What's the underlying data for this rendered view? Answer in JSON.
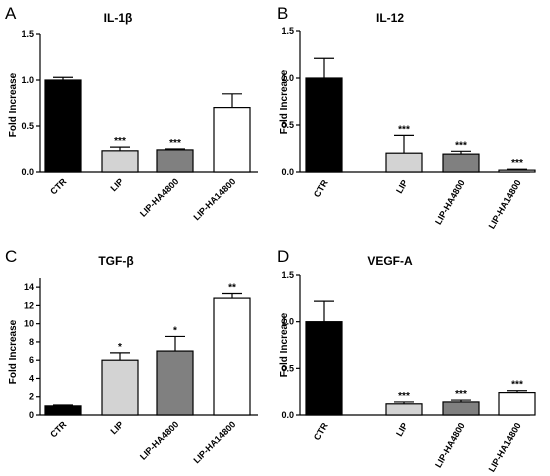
{
  "chart_data": [
    {
      "type": "bar",
      "panel": "A",
      "title": "IL-1β",
      "ylabel": "Fold Increase",
      "ylim": [
        0,
        1.5
      ],
      "yticks": [
        "0.0",
        "0.5",
        "1.0",
        "1.5"
      ],
      "yticks_values": [
        0,
        0.5,
        1.0,
        1.5
      ],
      "categories": [
        "CTR",
        "LIP",
        "LIP-HA4800",
        "LIP-HA14800"
      ],
      "values": [
        1.0,
        0.23,
        0.24,
        0.7
      ],
      "errors": [
        0.03,
        0.04,
        0.01,
        0.15
      ],
      "significance": [
        "",
        "***",
        "***",
        ""
      ],
      "colors": [
        "#000000",
        "#d3d3d3",
        "#808080",
        "#ffffff"
      ],
      "label_rotation": "diagonal"
    },
    {
      "type": "bar",
      "panel": "B",
      "title": "IL-12",
      "ylabel": "Fold Increase",
      "ylim": [
        0,
        1.5
      ],
      "yticks": [
        "0.0",
        "0.5",
        "1.0",
        "1.5"
      ],
      "yticks_values": [
        0,
        0.5,
        1.0,
        1.5
      ],
      "categories": [
        "CTR",
        "LIP",
        "LIP-HA4800",
        "LIP-HA14800"
      ],
      "values": [
        1.0,
        0.2,
        0.19,
        0.02
      ],
      "errors": [
        0.21,
        0.19,
        0.03,
        0.01
      ],
      "significance": [
        "",
        "***",
        "***",
        "***"
      ],
      "colors": [
        "#000000",
        "#d3d3d3",
        "#808080",
        "#ffffff"
      ],
      "label_rotation": "steep"
    },
    {
      "type": "bar",
      "panel": "C",
      "title": "TGF-β",
      "ylabel": "Fold Increase",
      "ylim": [
        0,
        15
      ],
      "yticks": [
        "0",
        "2",
        "4",
        "6",
        "8",
        "10",
        "12",
        "14"
      ],
      "yticks_values": [
        0,
        2,
        4,
        6,
        8,
        10,
        12,
        14
      ],
      "categories": [
        "CTR",
        "LIP",
        "LIP-HA4800",
        "LIP-HA14800"
      ],
      "values": [
        1.0,
        6.0,
        7.0,
        12.8
      ],
      "errors": [
        0.1,
        0.8,
        1.6,
        0.5
      ],
      "significance": [
        "",
        "*",
        "*",
        "**"
      ],
      "colors": [
        "#000000",
        "#d3d3d3",
        "#808080",
        "#ffffff"
      ],
      "label_rotation": "diagonal"
    },
    {
      "type": "bar",
      "panel": "D",
      "title": "VEGF-A",
      "ylabel": "Fold Increase",
      "ylim": [
        0,
        1.5
      ],
      "yticks": [
        "0.0",
        "0.5",
        "1.0",
        "1.5"
      ],
      "yticks_values": [
        0,
        0.5,
        1.0,
        1.5
      ],
      "categories": [
        "CTR",
        "LIP",
        "LIP-HA4800",
        "LIP-HA14800"
      ],
      "values": [
        1.0,
        0.12,
        0.14,
        0.24
      ],
      "errors": [
        0.22,
        0.02,
        0.02,
        0.02
      ],
      "significance": [
        "",
        "***",
        "***",
        "***"
      ],
      "colors": [
        "#000000",
        "#d3d3d3",
        "#808080",
        "#ffffff"
      ],
      "label_rotation": "steep"
    }
  ]
}
